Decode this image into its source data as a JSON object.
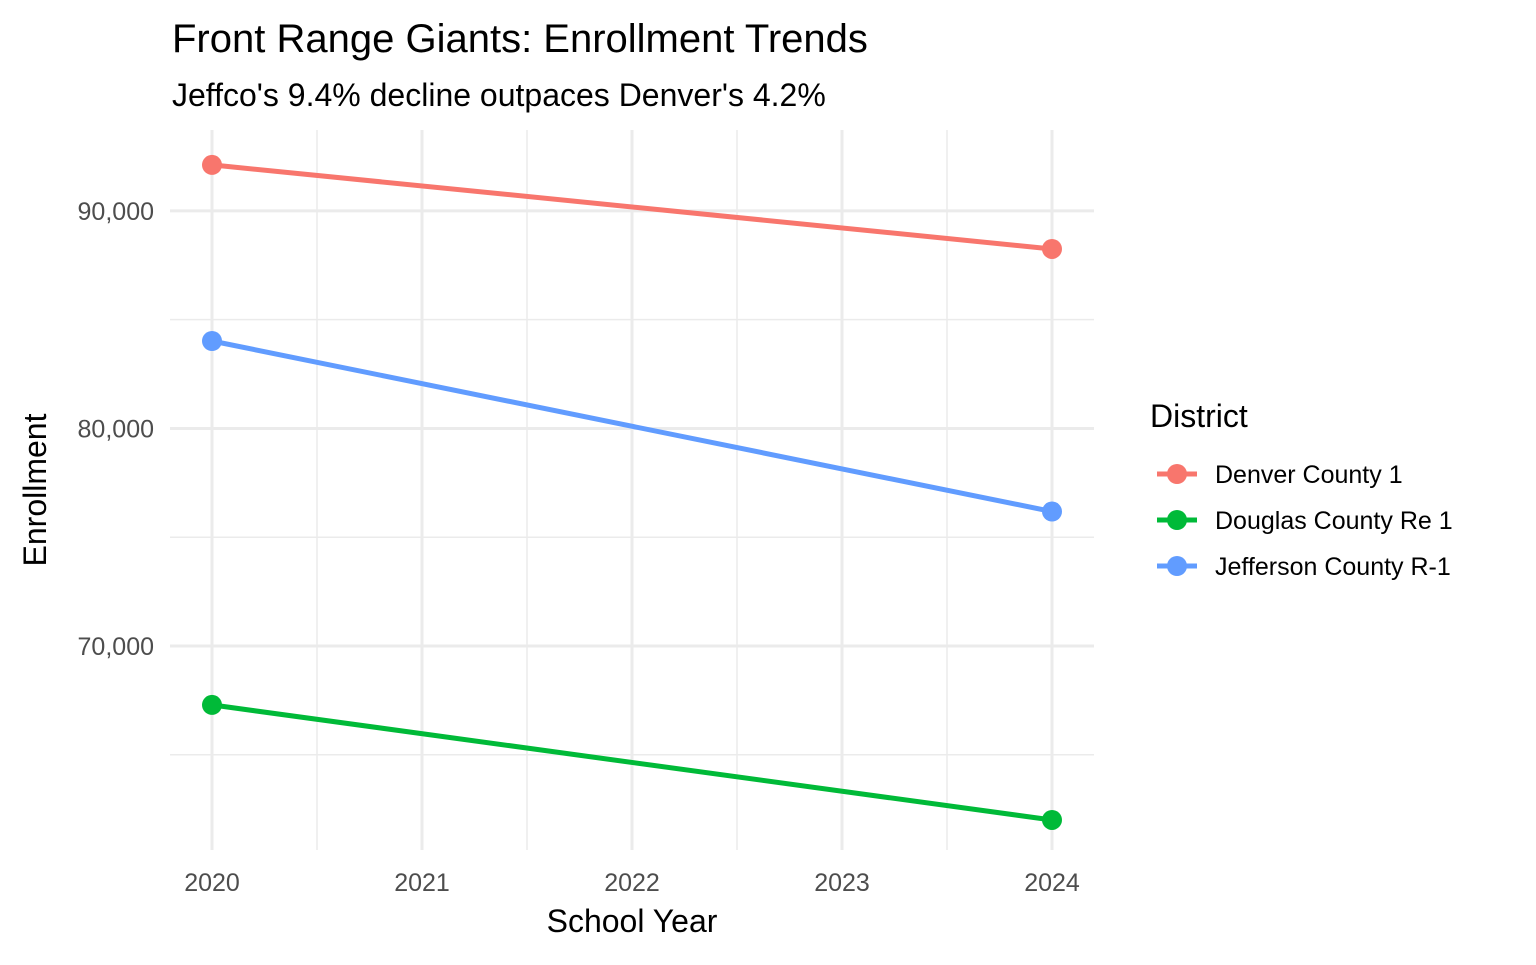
{
  "chart_data": {
    "type": "line",
    "title": "Front Range Giants: Enrollment Trends",
    "subtitle": "Jeffco's 9.4% decline outpaces Denver's 4.2%",
    "xlabel": "School Year",
    "ylabel": "Enrollment",
    "x": [
      2020,
      2024
    ],
    "xlim": [
      2019.8,
      2024.2
    ],
    "ylim": [
      60620,
      93720
    ],
    "x_ticks": [
      2020,
      2021,
      2022,
      2023,
      2024
    ],
    "x_tick_labels": [
      "2020",
      "2021",
      "2022",
      "2023",
      "2024"
    ],
    "y_ticks": [
      70000,
      80000,
      90000
    ],
    "y_tick_labels": [
      "70,000",
      "80,000",
      "90,000"
    ],
    "grid": true,
    "legend": {
      "title": "District",
      "placement": "right"
    },
    "series": [
      {
        "name": "Denver County 1",
        "color": "#F8766D",
        "values": [
          92115,
          88250
        ]
      },
      {
        "name": "Douglas County Re 1",
        "color": "#00BA38",
        "values": [
          67290,
          62000
        ]
      },
      {
        "name": "Jefferson County R-1",
        "color": "#619CFF",
        "values": [
          84020,
          76180
        ]
      }
    ]
  }
}
